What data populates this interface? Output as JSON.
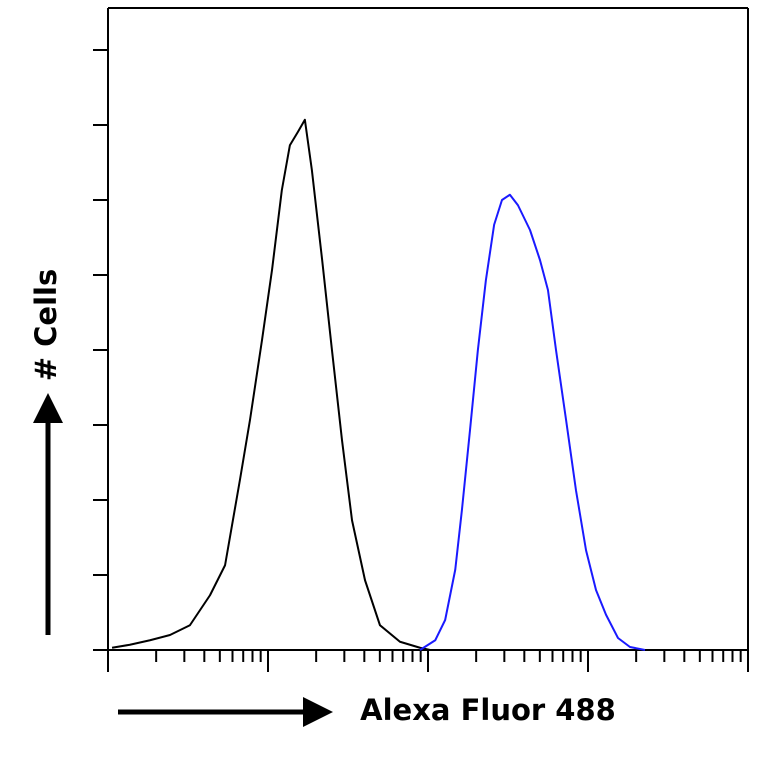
{
  "chart_data": {
    "type": "line",
    "x_label": "Alexa Fluor 488",
    "y_label": "# Cells",
    "xscale": "log",
    "xlim": [
      1,
      10000
    ],
    "xticks": [
      1,
      2,
      3,
      4,
      5,
      6,
      7,
      8,
      9,
      10,
      20,
      30,
      40,
      50,
      60,
      70,
      80,
      90,
      100,
      200,
      300,
      400,
      500,
      600,
      700,
      800,
      900,
      1000,
      2000,
      3000,
      4000,
      5000,
      6000,
      7000,
      8000,
      9000,
      10000
    ],
    "ylim": [
      0,
      856
    ],
    "yticks": [
      0,
      100,
      200,
      300,
      400,
      500,
      600,
      700,
      800
    ],
    "series": [
      {
        "color": "#000000",
        "x": [
          1.06,
          1.37,
          1.83,
          2.44,
          3.25,
          4.34,
          5.39,
          6.68,
          7.72,
          9.17,
          10.6,
          12.2,
          13.7,
          15.4,
          17.0,
          18.8,
          21.8,
          25.1,
          29.0,
          33.5,
          40.4,
          50.1,
          66.8,
          89.1,
          103
        ],
        "values": [
          3,
          7,
          13,
          20,
          33,
          73,
          113,
          227,
          307,
          413,
          507,
          613,
          673,
          691,
          707,
          640,
          520,
          400,
          280,
          173,
          93,
          33,
          11,
          3,
          0
        ]
      },
      {
        "color": "#1a1aff",
        "x": [
          89.1,
          111,
          128,
          148,
          163,
          183,
          205,
          230,
          259,
          290,
          325,
          365,
          434,
          501,
          562,
          631,
          729,
          841,
          972,
          1122,
          1296,
          1540,
          1830,
          2271
        ],
        "values": [
          0,
          13,
          40,
          107,
          187,
          293,
          400,
          493,
          567,
          600,
          607,
          593,
          560,
          520,
          480,
          400,
          307,
          213,
          133,
          80,
          47,
          16,
          4,
          0
        ]
      }
    ]
  }
}
